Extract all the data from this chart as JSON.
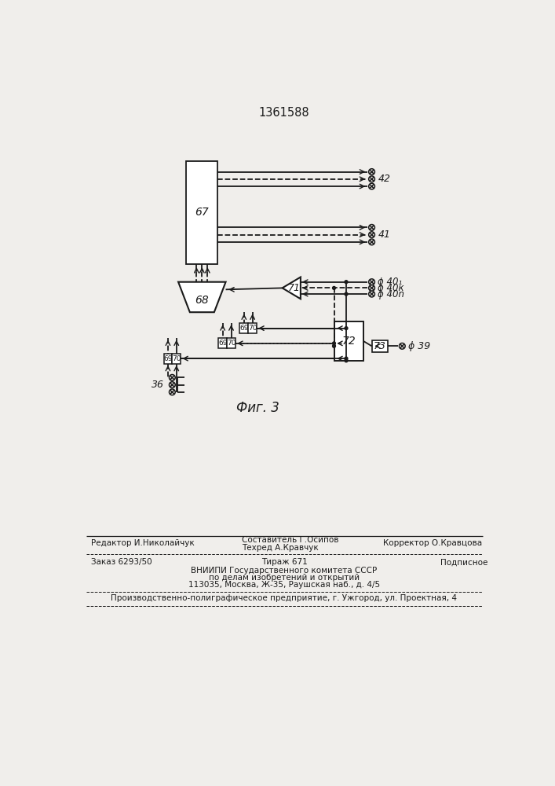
{
  "title": "1361588",
  "fig_caption": "Фиг. 3",
  "background_color": "#f0eeeb",
  "line_color": "#1a1a1a",
  "text_color": "#1a1a1a",
  "footer_line1_left": "Редактор И.Николайчук",
  "footer_line1_center1": "Составитель Г.Осипов",
  "footer_line1_center2": "Техред А.Кравчук",
  "footer_line1_right": "Корректор О.Кравцова",
  "footer_line2_left": "Заказ 6293/50",
  "footer_line2_center": "Тираж 671",
  "footer_line2_right": "Подписное",
  "footer_line3": "ВНИИПИ Государственного комитета СССР",
  "footer_line4": "по делам изобретений и открытий",
  "footer_line5": "113035, Москва, Ж-35, Раушская наб., д. 4/5",
  "footer_bottom": "Производственно-полиграфическое предприятие, г. Ужгород, ул. Проектная, 4"
}
